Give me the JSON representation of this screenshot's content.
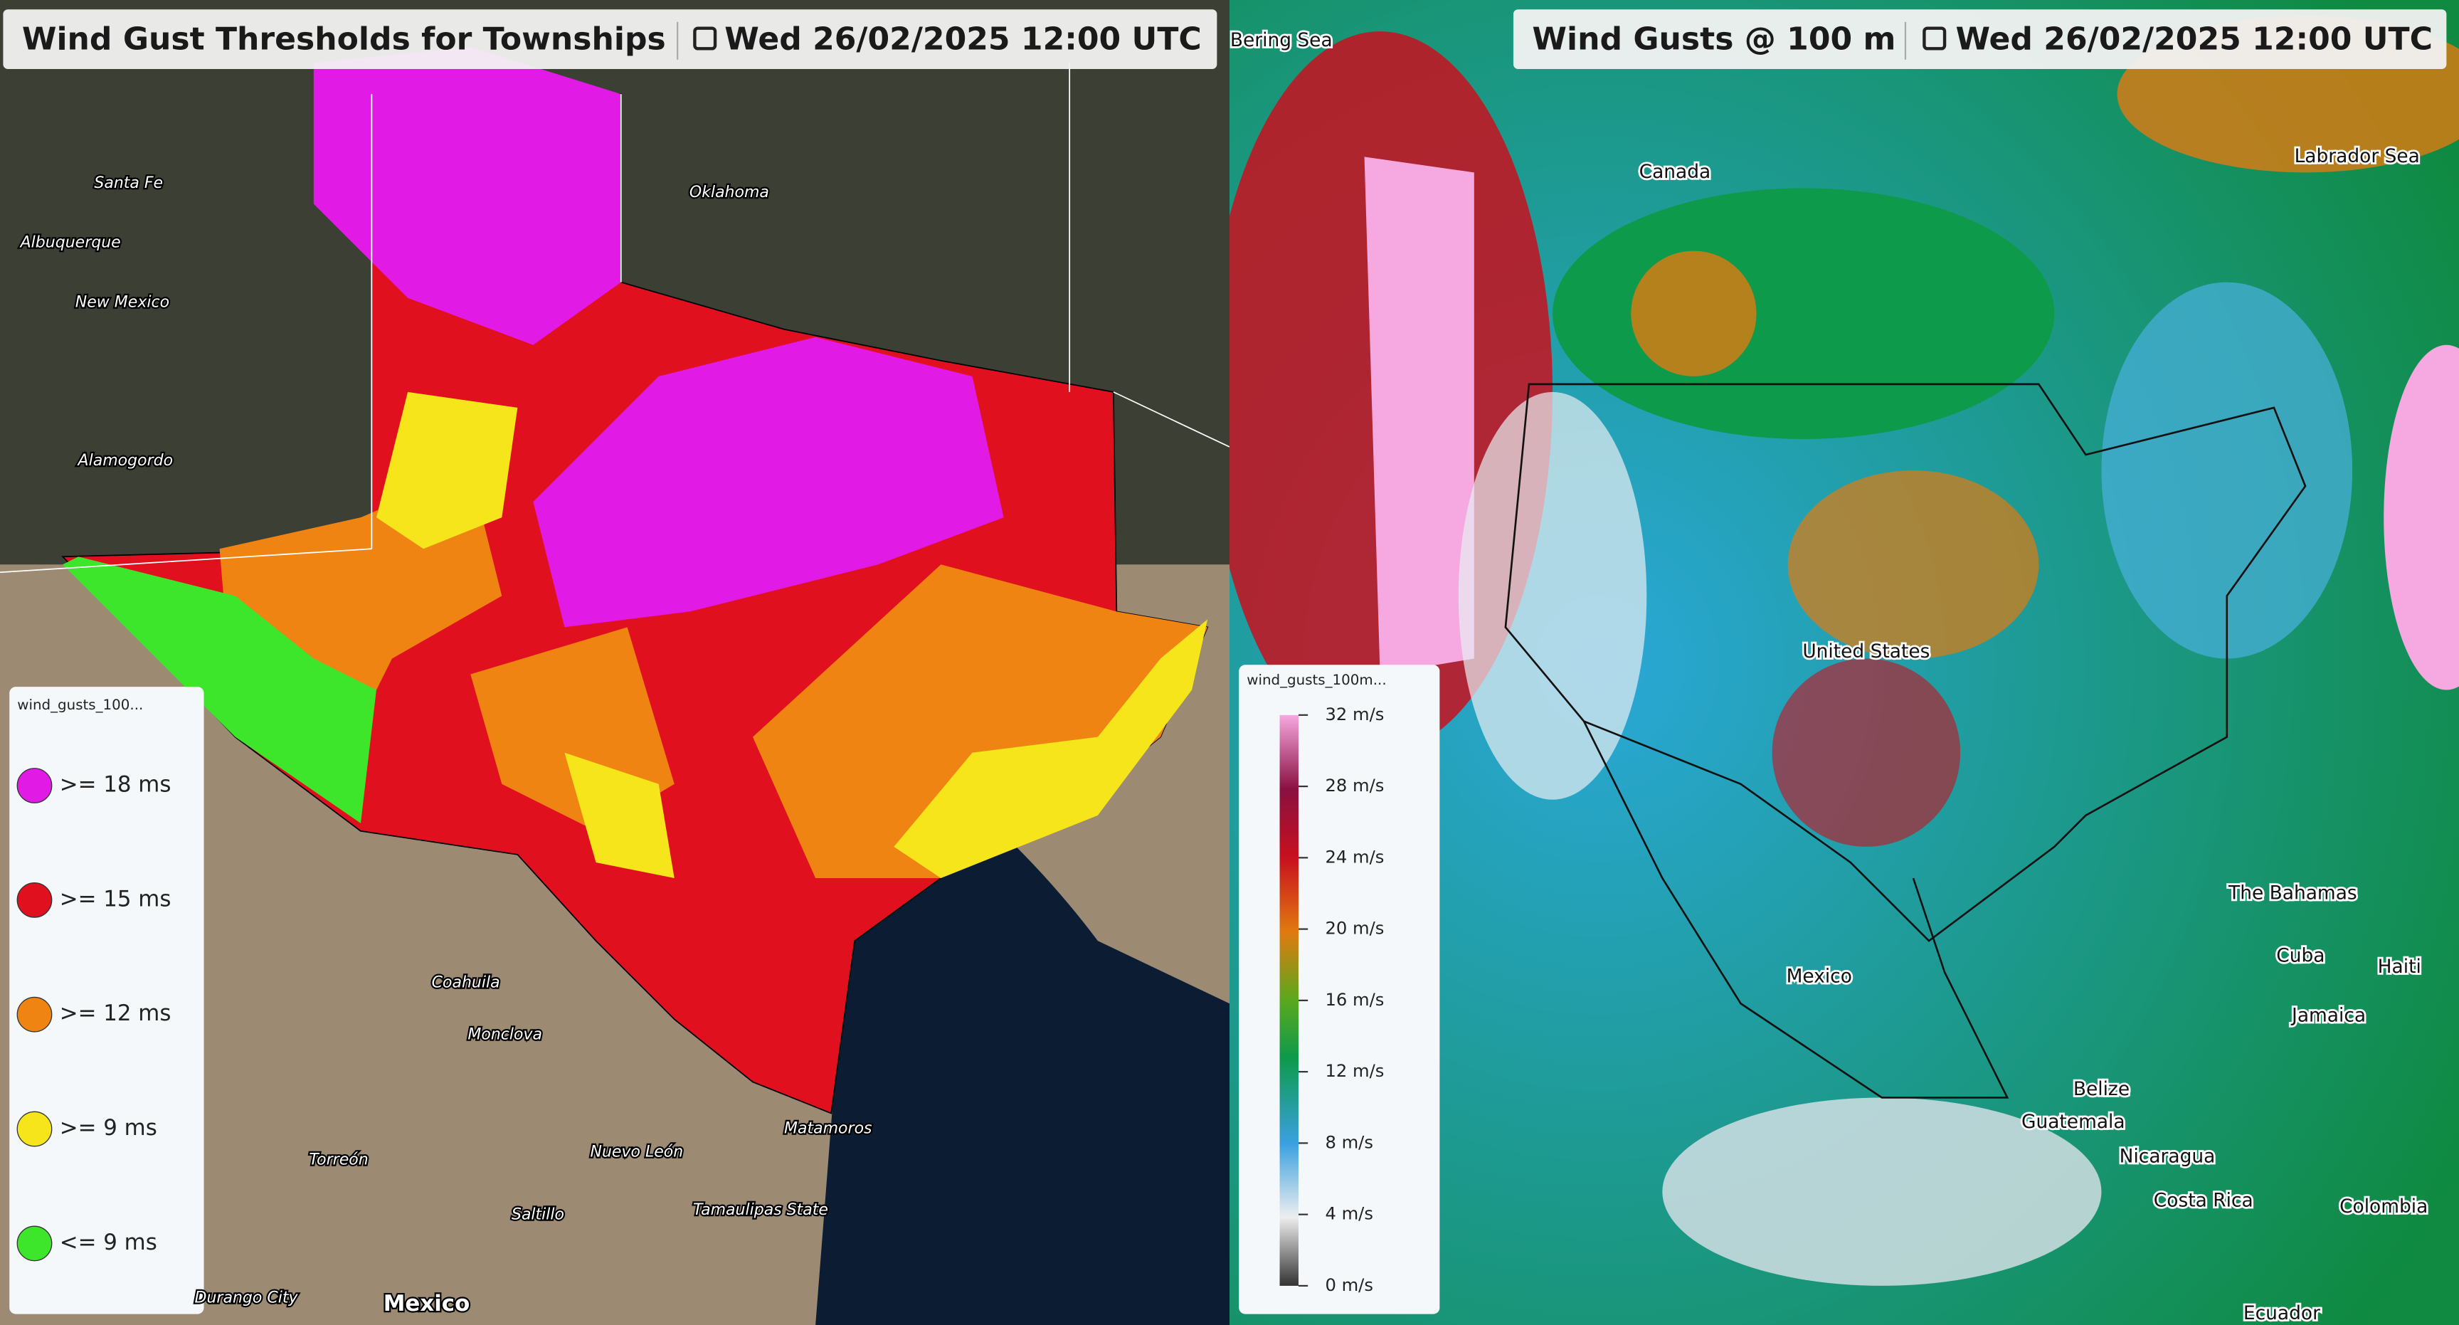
{
  "left_panel": {
    "title": "Wind Gust Thresholds for Townships",
    "date": "Wed 26/02/2025 12:00 UTC",
    "legend": {
      "title": "wind_gusts_100...",
      "items": [
        {
          "label": ">= 18 ms",
          "color": "#e21ae6"
        },
        {
          "label": ">= 15 ms",
          "color": "#e0101e"
        },
        {
          "label": ">= 12 ms",
          "color": "#ef8412"
        },
        {
          "label": ">= 9 ms",
          "color": "#f5e51a"
        },
        {
          "label": "<= 9 ms",
          "color": "#3de62a"
        }
      ]
    },
    "map_labels": [
      "Santa Fe",
      "Albuquerque",
      "New Mexico",
      "Alamogordo",
      "Oklahoma",
      "Coahuila",
      "Monclova",
      "Torreón",
      "Saltillo",
      "Nuevo León",
      "Tamaulipas State",
      "Durango City",
      "Mexico",
      "Matamoros"
    ]
  },
  "right_panel": {
    "title": "Wind Gusts @ 100 m",
    "date": "Wed 26/02/2025 12:00 UTC",
    "legend": {
      "title": "wind_gusts_100m...",
      "range": [
        0,
        32
      ],
      "ticks": [
        {
          "value": 32,
          "label": "32 m/s"
        },
        {
          "value": 28,
          "label": "28 m/s"
        },
        {
          "value": 24,
          "label": "24 m/s"
        },
        {
          "value": 20,
          "label": "20 m/s"
        },
        {
          "value": 16,
          "label": "16 m/s"
        },
        {
          "value": 12,
          "label": "12 m/s"
        },
        {
          "value": 8,
          "label": "8 m/s"
        },
        {
          "value": 4,
          "label": "4 m/s"
        },
        {
          "value": 0,
          "label": "0 m/s"
        }
      ]
    },
    "map_labels": [
      "Bering Sea",
      "Canada",
      "Labrador Sea",
      "United States",
      "Mexico",
      "The Bahamas",
      "Cuba",
      "Haiti",
      "Jamaica",
      "Belize",
      "Guatemala",
      "Nicaragua",
      "Costa Rica",
      "Colombia",
      "Ecuador"
    ]
  }
}
